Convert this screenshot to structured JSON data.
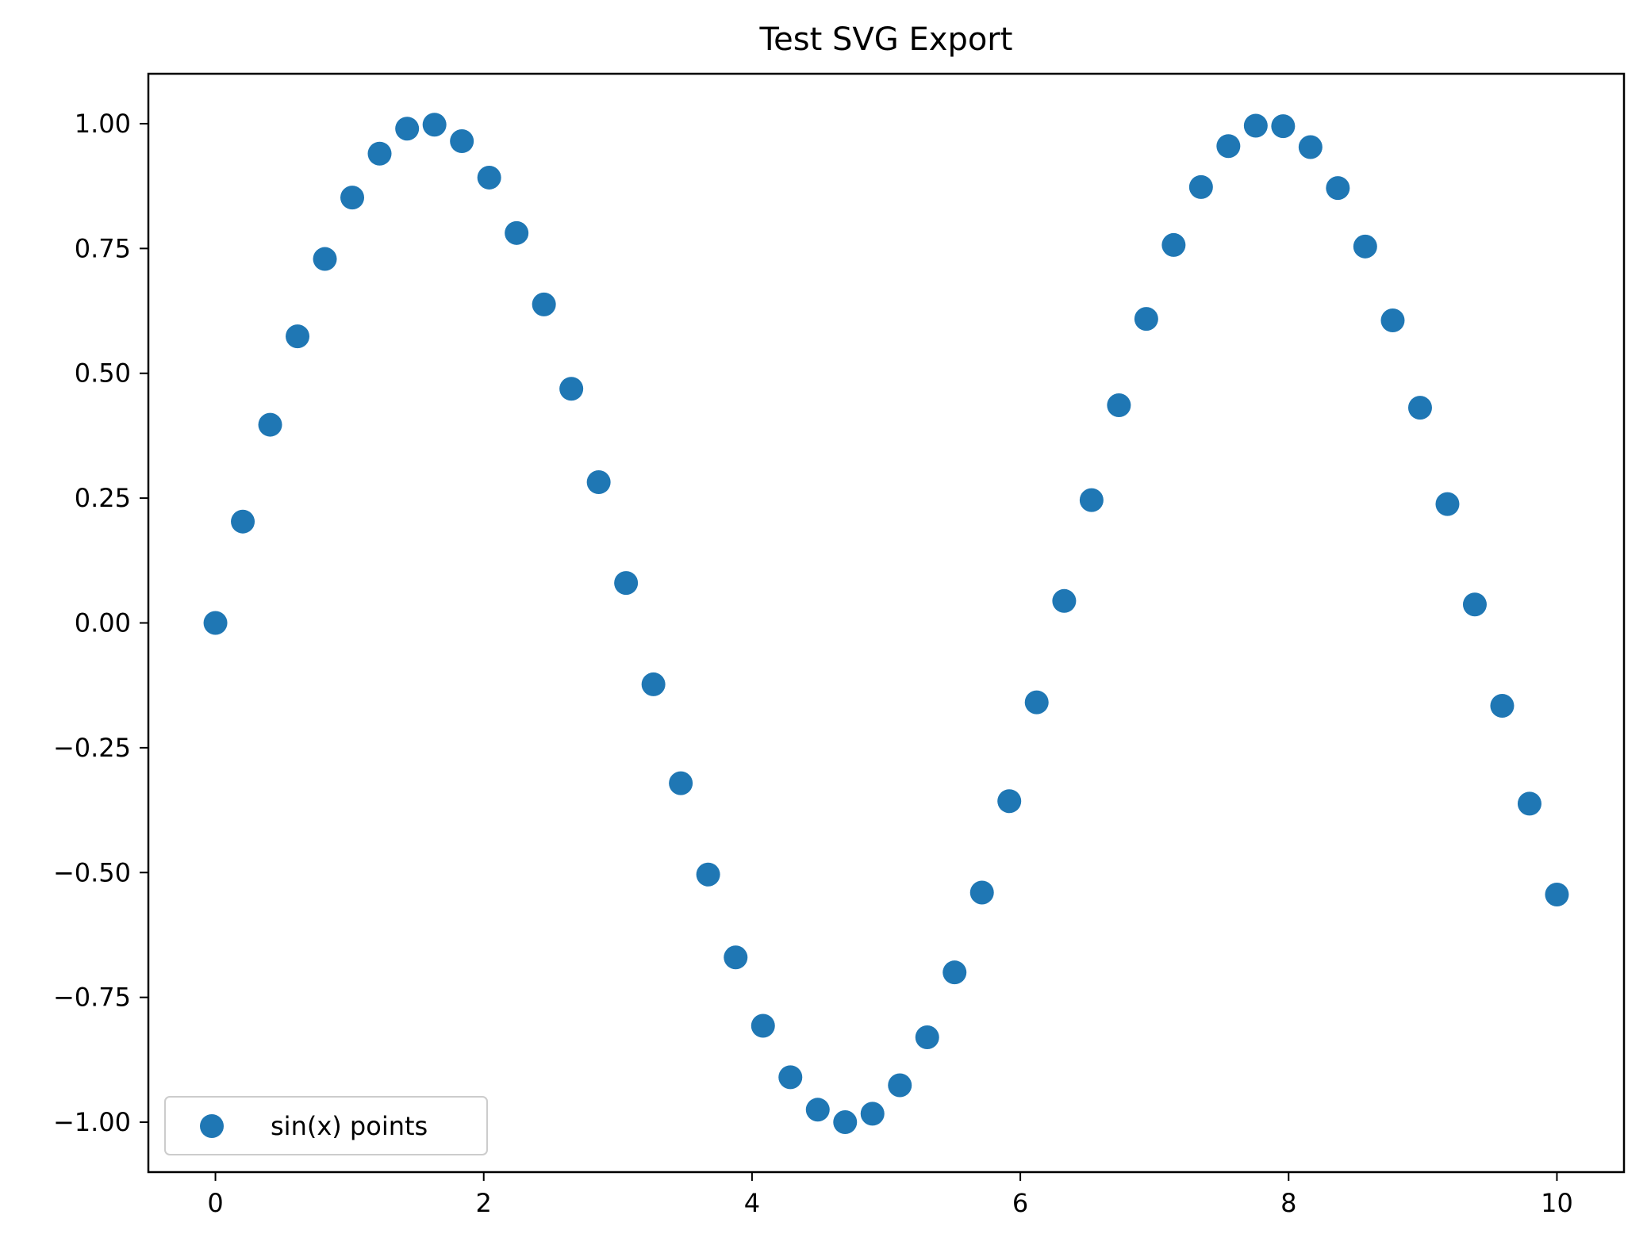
{
  "chart_data": {
    "type": "scatter",
    "title": "Test SVG Export",
    "xlabel": "",
    "ylabel": "",
    "xlim": [
      -0.5,
      10.5
    ],
    "ylim": [
      -1.1,
      1.1
    ],
    "x_ticks": [
      0,
      2,
      4,
      6,
      8,
      10
    ],
    "x_tick_labels": [
      "0",
      "2",
      "4",
      "6",
      "8",
      "10"
    ],
    "y_ticks": [
      1.0,
      0.75,
      0.5,
      0.25,
      0.0,
      -0.25,
      -0.5,
      -0.75,
      -1.0
    ],
    "y_tick_labels": [
      "1.00",
      "0.75",
      "0.50",
      "0.25",
      "0.00",
      "−0.25",
      "−0.50",
      "−0.75",
      "−1.00"
    ],
    "grid": false,
    "legend": {
      "position": "lower-left",
      "entries": [
        "sin(x) points"
      ]
    },
    "series": [
      {
        "name": "sin(x) points",
        "color": "#1f77b4",
        "x": [
          0.0,
          0.204,
          0.408,
          0.612,
          0.816,
          1.02,
          1.224,
          1.429,
          1.633,
          1.837,
          2.041,
          2.245,
          2.449,
          2.653,
          2.857,
          3.061,
          3.265,
          3.469,
          3.673,
          3.878,
          4.082,
          4.286,
          4.49,
          4.694,
          4.898,
          5.102,
          5.306,
          5.51,
          5.714,
          5.918,
          6.122,
          6.327,
          6.531,
          6.735,
          6.939,
          7.143,
          7.347,
          7.551,
          7.755,
          7.959,
          8.163,
          8.367,
          8.571,
          8.776,
          8.98,
          9.184,
          9.388,
          9.592,
          9.796,
          10.0
        ],
        "y": [
          0.0,
          0.203,
          0.397,
          0.574,
          0.729,
          0.852,
          0.94,
          0.99,
          0.998,
          0.965,
          0.892,
          0.781,
          0.638,
          0.469,
          0.282,
          0.08,
          -0.123,
          -0.321,
          -0.504,
          -0.67,
          -0.807,
          -0.91,
          -0.975,
          -1.0,
          -0.983,
          -0.926,
          -0.83,
          -0.7,
          -0.54,
          -0.357,
          -0.159,
          0.044,
          0.246,
          0.436,
          0.609,
          0.757,
          0.873,
          0.955,
          0.996,
          0.995,
          0.953,
          0.871,
          0.754,
          0.606,
          0.431,
          0.238,
          0.037,
          -0.166,
          -0.362,
          -0.544
        ]
      }
    ]
  }
}
